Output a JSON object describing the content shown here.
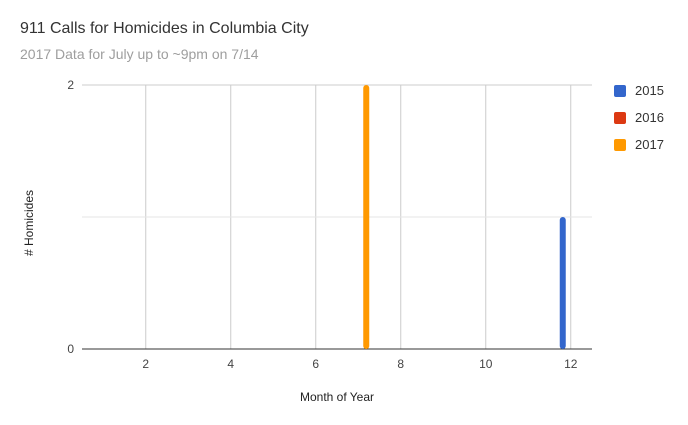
{
  "chart_data": {
    "type": "bar",
    "title": "911 Calls for Homicides in Columbia City",
    "subtitle": "2017 Data for July up to ~9pm on 7/14",
    "xlabel": "Month of Year",
    "ylabel": "# Homicides",
    "xlim": [
      0.5,
      12.5
    ],
    "ylim": [
      0,
      2
    ],
    "x_ticks": [
      2,
      4,
      6,
      8,
      10,
      12
    ],
    "y_ticks": [
      0,
      2
    ],
    "y_gridlines": [
      1
    ],
    "legend_position": "right",
    "series": [
      {
        "name": "2015",
        "color": "#3366cc",
        "points": [
          {
            "x": 12,
            "y": 1
          }
        ]
      },
      {
        "name": "2016",
        "color": "#dc3912",
        "points": []
      },
      {
        "name": "2017",
        "color": "#ff9900",
        "points": [
          {
            "x": 7,
            "y": 2
          }
        ]
      }
    ]
  }
}
